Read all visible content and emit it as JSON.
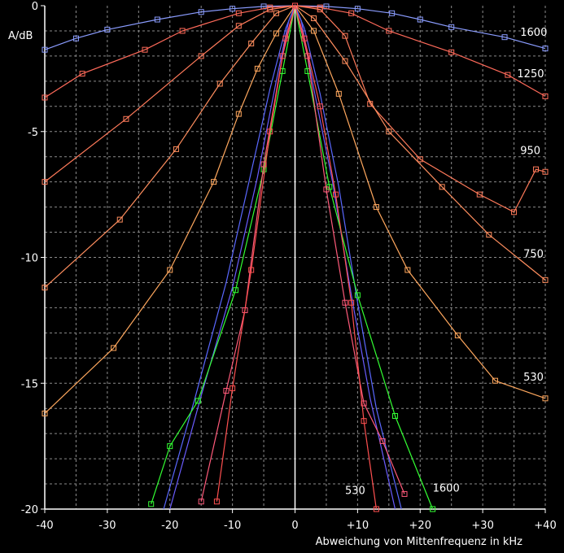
{
  "chart_data": {
    "type": "line",
    "xlabel": "Abweichung von Mittenfrequenz in kHz",
    "ylabel": "A/dB",
    "xlim": [
      -40,
      40
    ],
    "ylim": [
      -20,
      0
    ],
    "x_ticks": [
      -40,
      -30,
      -20,
      -10,
      0,
      10,
      20,
      30,
      40
    ],
    "x_tick_labels": [
      "-40",
      "-30",
      "-20",
      "-10",
      "0",
      "+10",
      "+20",
      "+30",
      "+40"
    ],
    "y_ticks": [
      0,
      -5,
      -10,
      -15,
      -20
    ],
    "y_tick_labels": [
      "0",
      "-5",
      "-10",
      "-15",
      "-20"
    ],
    "grid": true,
    "background": "#000000",
    "series": [
      {
        "name": "1600",
        "color": "#8a9cff",
        "marker": "square",
        "x": [
          -40,
          -35,
          -30,
          -22,
          -15,
          -10,
          -5,
          0,
          5,
          10,
          15.5,
          20,
          25,
          33.5,
          40
        ],
        "y": [
          -1.75,
          -1.3,
          -0.95,
          -0.55,
          -0.25,
          -0.12,
          -0.03,
          0,
          -0.03,
          -0.12,
          -0.3,
          -0.55,
          -0.85,
          -1.25,
          -1.7
        ]
      },
      {
        "name": "1250",
        "color": "#ff6a5a",
        "marker": "square",
        "x": [
          -40,
          -34,
          -24,
          -18,
          -9,
          -4,
          0,
          4,
          9,
          15,
          25,
          34,
          40
        ],
        "y": [
          -3.65,
          -2.7,
          -1.75,
          -1.0,
          -0.3,
          -0.07,
          0,
          -0.07,
          -0.3,
          -1.0,
          -1.85,
          -2.75,
          -3.6
        ]
      },
      {
        "name": "950",
        "color": "#ff7a5a",
        "marker": "square",
        "x": [
          -40,
          -27,
          -15,
          -9,
          -4,
          0,
          4,
          8,
          12,
          20,
          29.5,
          35,
          38.5,
          40
        ],
        "y": [
          -7.0,
          -4.5,
          -2.0,
          -0.8,
          -0.15,
          0,
          -0.15,
          -1.2,
          -3.9,
          -6.1,
          -7.5,
          -8.2,
          -6.5,
          -6.6
        ]
      },
      {
        "name": "750",
        "color": "#ff8e5e",
        "marker": "square",
        "x": [
          -40,
          -28,
          -19,
          -12,
          -7,
          -3,
          0,
          3,
          8,
          15,
          23.5,
          31,
          40
        ],
        "y": [
          -11.2,
          -8.5,
          -5.7,
          -3.1,
          -1.5,
          -0.3,
          0,
          -0.5,
          -2.2,
          -5.0,
          -7.2,
          -9.1,
          -10.9
        ]
      },
      {
        "name": "530",
        "color": "#ffa85e",
        "marker": "square",
        "x": [
          -40,
          -29,
          -20,
          -13,
          -9,
          -6,
          -3,
          0,
          3,
          7,
          13,
          18,
          26,
          32,
          40
        ],
        "y": [
          -16.2,
          -13.6,
          -10.5,
          -7.0,
          -4.3,
          -2.5,
          -1.1,
          0,
          -1.0,
          -3.5,
          -8.0,
          -10.5,
          -13.1,
          -14.9,
          -15.6
        ]
      },
      {
        "name": "",
        "color": "#6a5cff",
        "marker": "none",
        "x": [
          -20,
          -15,
          -10,
          -6,
          -3,
          -1,
          0,
          1,
          3,
          6,
          9,
          12,
          16
        ],
        "y": [
          -20,
          -15.5,
          -11.2,
          -6.8,
          -3.0,
          -0.6,
          0,
          -0.6,
          -3.3,
          -7.0,
          -11.5,
          -15.6,
          -20
        ]
      },
      {
        "name": "",
        "color": "#5a68ff",
        "marker": "none",
        "x": [
          -21,
          -16,
          -11,
          -7,
          -4,
          -1.5,
          0,
          1.5,
          4,
          7,
          10,
          13,
          17
        ],
        "y": [
          -20,
          -15.6,
          -11.0,
          -6.6,
          -3.3,
          -0.9,
          0,
          -0.9,
          -3.5,
          -7.2,
          -11.8,
          -16.0,
          -20
        ]
      },
      {
        "name": "",
        "color": "#33ff33",
        "marker": "square",
        "x": [
          -23,
          -20,
          -15.5,
          -9.5,
          -5,
          -2,
          0,
          2,
          5.5,
          10,
          16,
          22
        ],
        "y": [
          -19.8,
          -17.5,
          -15.7,
          -11.3,
          -6.5,
          -2.6,
          0,
          -2.6,
          -7.2,
          -11.5,
          -16.3,
          -20
        ]
      },
      {
        "name": "",
        "color": "#ff5a7a",
        "marker": "square",
        "x": [
          -15,
          -11,
          -8,
          -5,
          -2,
          0,
          2,
          5,
          8,
          11,
          14,
          17.5
        ],
        "y": [
          -19.7,
          -15.3,
          -12.1,
          -6.3,
          -2.0,
          0,
          -2.0,
          -7.3,
          -11.8,
          -15.8,
          -17.3,
          -19.4
        ]
      },
      {
        "name": "",
        "color": "#ff5050",
        "marker": "square",
        "x": [
          -12.5,
          -10,
          -7,
          -4,
          -1.5,
          0,
          1.5,
          4,
          6.5,
          9,
          11,
          13
        ],
        "y": [
          -19.7,
          -15.2,
          -10.5,
          -5.0,
          -1.3,
          0,
          -1.3,
          -4.0,
          -7.5,
          -11.8,
          -16.5,
          -20
        ]
      }
    ],
    "annotations": [
      {
        "text": "1600",
        "x": 36,
        "y": -1.2
      },
      {
        "text": "1250",
        "x": 35.5,
        "y": -2.85
      },
      {
        "text": "950",
        "x": 36,
        "y": -5.9
      },
      {
        "text": "750",
        "x": 36.5,
        "y": -10.0
      },
      {
        "text": "530",
        "x": 36.5,
        "y": -14.9
      },
      {
        "text": "530",
        "x": 8,
        "y": -19.4
      },
      {
        "text": "1600",
        "x": 22,
        "y": -19.3
      }
    ]
  }
}
